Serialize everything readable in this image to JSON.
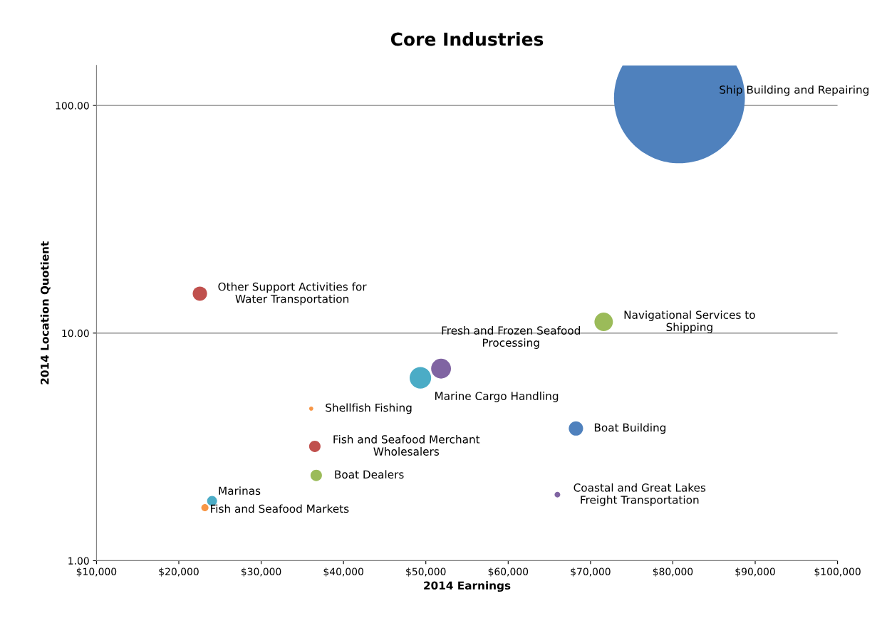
{
  "chart_data": {
    "type": "bubble",
    "title": "Core Industries",
    "xlabel": "2014 Earnings",
    "ylabel": "2014 Location Quotient",
    "log": "y",
    "grid": "y",
    "legend": false,
    "xlim": [
      10000,
      100000
    ],
    "xticks": [
      {
        "value": 10000,
        "label": "$10,000"
      },
      {
        "value": 20000,
        "label": "$20,000"
      },
      {
        "value": 30000,
        "label": "$30,000"
      },
      {
        "value": 40000,
        "label": "$40,000"
      },
      {
        "value": 50000,
        "label": "$50,000"
      },
      {
        "value": 60000,
        "label": "$60,000"
      },
      {
        "value": 70000,
        "label": "$70,000"
      },
      {
        "value": 80000,
        "label": "$80,000"
      },
      {
        "value": 90000,
        "label": "$90,000"
      },
      {
        "value": 100000,
        "label": "$100,000"
      }
    ],
    "ylim": [
      1,
      150
    ],
    "yticks": [
      {
        "value": 1,
        "label": "1.00"
      },
      {
        "value": 10,
        "label": "10.00"
      },
      {
        "value": 100,
        "label": "100.00"
      }
    ],
    "series": [
      {
        "name": "Ship Building and Repairing",
        "color": "#4f81bd",
        "x": [
          80800
        ],
        "values": [
          108
        ],
        "sizes": [
          1
        ]
      },
      {
        "name": "Other Support Activities for\nWater Transportation",
        "color": "#c0504d",
        "x": [
          22560
        ],
        "values": [
          14.9
        ],
        "sizes": [
          0.012
        ]
      },
      {
        "name": "Navigational Services to\nShipping",
        "color": "#9bbb59",
        "x": [
          71600
        ],
        "values": [
          11.2
        ],
        "sizes": [
          0.02
        ]
      },
      {
        "name": "Fresh and Frozen Seafood\nProcessing",
        "color": "#8064a2",
        "x": [
          51850
        ],
        "values": [
          6.98
        ],
        "sizes": [
          0.023
        ]
      },
      {
        "name": "Marine Cargo Handling",
        "color": "#4bacc6",
        "x": [
          49340
        ],
        "values": [
          6.36
        ],
        "sizes": [
          0.027
        ]
      },
      {
        "name": "Shellfish Fishing",
        "color": "#f79646",
        "x": [
          36080
        ],
        "values": [
          4.66
        ],
        "sizes": [
          0.001
        ]
      },
      {
        "name": "Fish and Seafood Merchant\nWholesalers",
        "color": "#c0504d",
        "x": [
          36520
        ],
        "values": [
          3.18
        ],
        "sizes": [
          0.0076
        ]
      },
      {
        "name": "Boat Dealers",
        "color": "#9bbb59",
        "x": [
          36690
        ],
        "values": [
          2.37
        ],
        "sizes": [
          0.0076
        ]
      },
      {
        "name": "Boat Building",
        "color": "#4f81bd",
        "x": [
          68230
        ],
        "values": [
          3.81
        ],
        "sizes": [
          0.012
        ]
      },
      {
        "name": "Coastal and Great Lakes\nFreight Transportation",
        "color": "#8064a2",
        "x": [
          65980
        ],
        "values": [
          1.95
        ],
        "sizes": [
          0.0019
        ]
      },
      {
        "name": "Marinas",
        "color": "#4bacc6",
        "x": [
          24040
        ],
        "values": [
          1.83
        ],
        "sizes": [
          0.0058
        ]
      },
      {
        "name": "Fish and Seafood Markets",
        "color": "#f79646",
        "x": [
          23170
        ],
        "values": [
          1.71
        ],
        "sizes": [
          0.003
        ]
      }
    ]
  }
}
